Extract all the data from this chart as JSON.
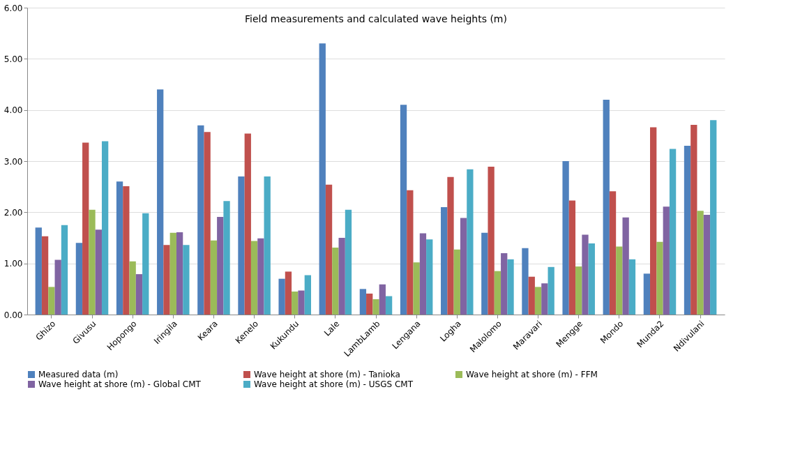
{
  "chart_data": {
    "type": "bar",
    "title": "Field measurements and calculated wave heights (m)",
    "categories": [
      "Ghizo",
      "Givusu",
      "Hopongo",
      "Iringila",
      "Keara",
      "Kenelo",
      "Kukundu",
      "Lale",
      "LambLamb",
      "Lengana",
      "Logha",
      "Malolomo",
      "Maravari",
      "Mengge",
      "Mondo",
      "Munda2",
      "Ndivulani"
    ],
    "series": [
      {
        "name": "Measured data (m)",
        "color": "#4f81bd",
        "values": [
          1.7,
          1.4,
          2.6,
          4.4,
          3.7,
          2.7,
          0.7,
          5.3,
          0.5,
          4.1,
          2.1,
          1.6,
          1.3,
          3.0,
          4.2,
          0.8,
          3.3
        ]
      },
      {
        "name": "Wave height at shore (m) - Tanioka",
        "color": "#c0504d",
        "values": [
          1.53,
          3.36,
          2.51,
          1.36,
          3.57,
          3.54,
          0.84,
          2.54,
          0.41,
          2.43,
          2.69,
          2.89,
          0.74,
          2.23,
          2.41,
          3.66,
          3.71
        ]
      },
      {
        "name": "Wave height at shore (m) - FFM",
        "color": "#9bbb59",
        "values": [
          0.54,
          2.05,
          1.04,
          1.6,
          1.45,
          1.44,
          0.45,
          1.31,
          0.3,
          1.02,
          1.27,
          0.85,
          0.54,
          0.94,
          1.33,
          1.42,
          2.03
        ]
      },
      {
        "name": "Wave height at shore (m) - Global CMT",
        "color": "#8064a2",
        "values": [
          1.07,
          1.66,
          0.79,
          1.61,
          1.91,
          1.49,
          0.47,
          1.5,
          0.59,
          1.59,
          1.89,
          1.2,
          0.61,
          1.56,
          1.9,
          2.11,
          1.95
        ]
      },
      {
        "name": "Wave height at shore (m) - USGS CMT",
        "color": "#4bacc6",
        "values": [
          1.75,
          3.39,
          1.98,
          1.36,
          2.22,
          2.7,
          0.77,
          2.05,
          0.36,
          1.47,
          2.84,
          1.08,
          0.93,
          1.39,
          1.08,
          3.24,
          3.8
        ]
      }
    ],
    "ylim": [
      0,
      6
    ],
    "yticks": [
      {
        "value": 0,
        "label": "0.00"
      },
      {
        "value": 1,
        "label": "1.00"
      },
      {
        "value": 2,
        "label": "2.00"
      },
      {
        "value": 3,
        "label": "3.00"
      },
      {
        "value": 4,
        "label": "4.00"
      },
      {
        "value": 5,
        "label": "5.00"
      },
      {
        "value": 6,
        "label": "6.00"
      }
    ],
    "grid": "y",
    "legend": "bottom"
  }
}
